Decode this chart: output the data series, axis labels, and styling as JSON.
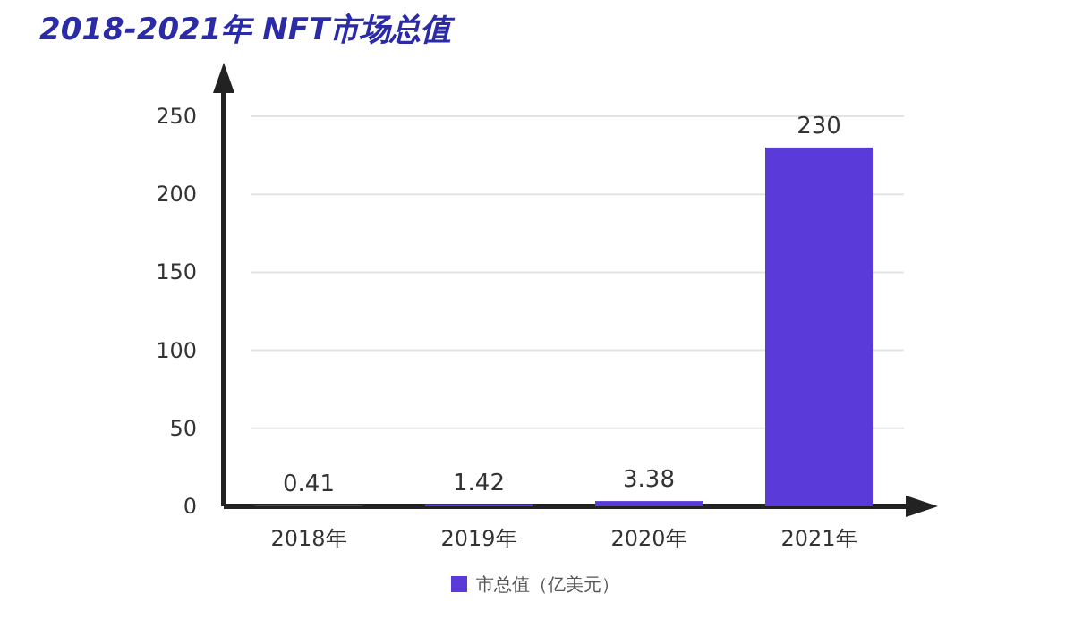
{
  "chart_data": {
    "type": "bar",
    "title": "2018-2021年  NFT市场总值",
    "categories": [
      "2018年",
      "2019年",
      "2020年",
      "2021年"
    ],
    "series": [
      {
        "name": "市总值（亿美元）",
        "color": "#5a3ad8",
        "values": [
          0.41,
          1.42,
          3.38,
          230
        ]
      }
    ],
    "ylim": [
      0,
      250
    ],
    "yticks": [
      0,
      50,
      100,
      150,
      200,
      250
    ],
    "grid": "y",
    "legend": "bottom",
    "data_labels": true
  }
}
